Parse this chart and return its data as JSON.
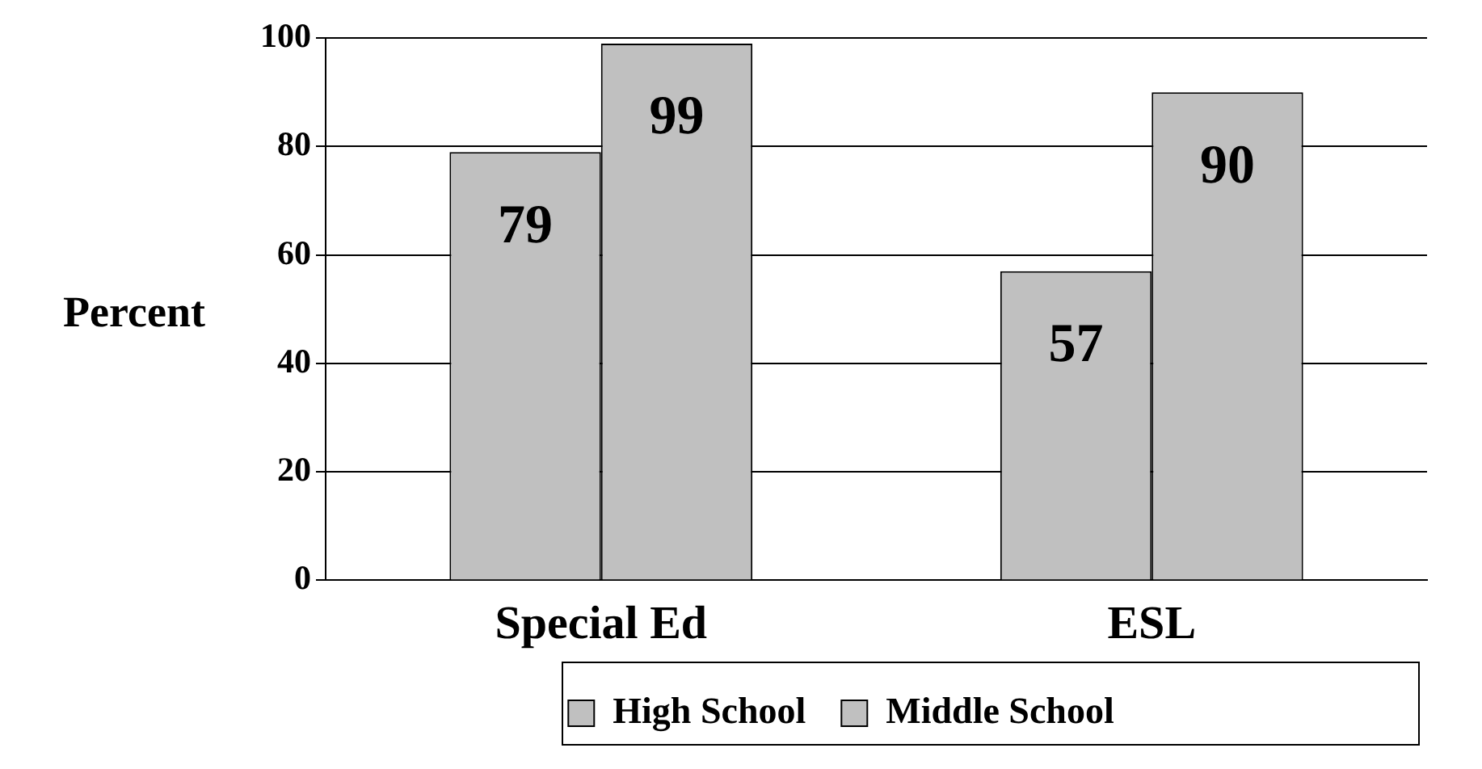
{
  "chart_data": {
    "type": "bar",
    "ylabel": "Percent",
    "categories": [
      "Special Ed",
      "ESL"
    ],
    "series": [
      {
        "name": "High School",
        "color": "#c0c0c0",
        "values": [
          79,
          57
        ]
      },
      {
        "name": "Middle School",
        "color": "#c0c0c0",
        "values": [
          99,
          90
        ]
      }
    ],
    "ylim": [
      0,
      100
    ],
    "yticks": [
      0,
      20,
      40,
      60,
      80,
      100
    ],
    "grid": "y",
    "legend": "bottom",
    "data_labels": true
  }
}
